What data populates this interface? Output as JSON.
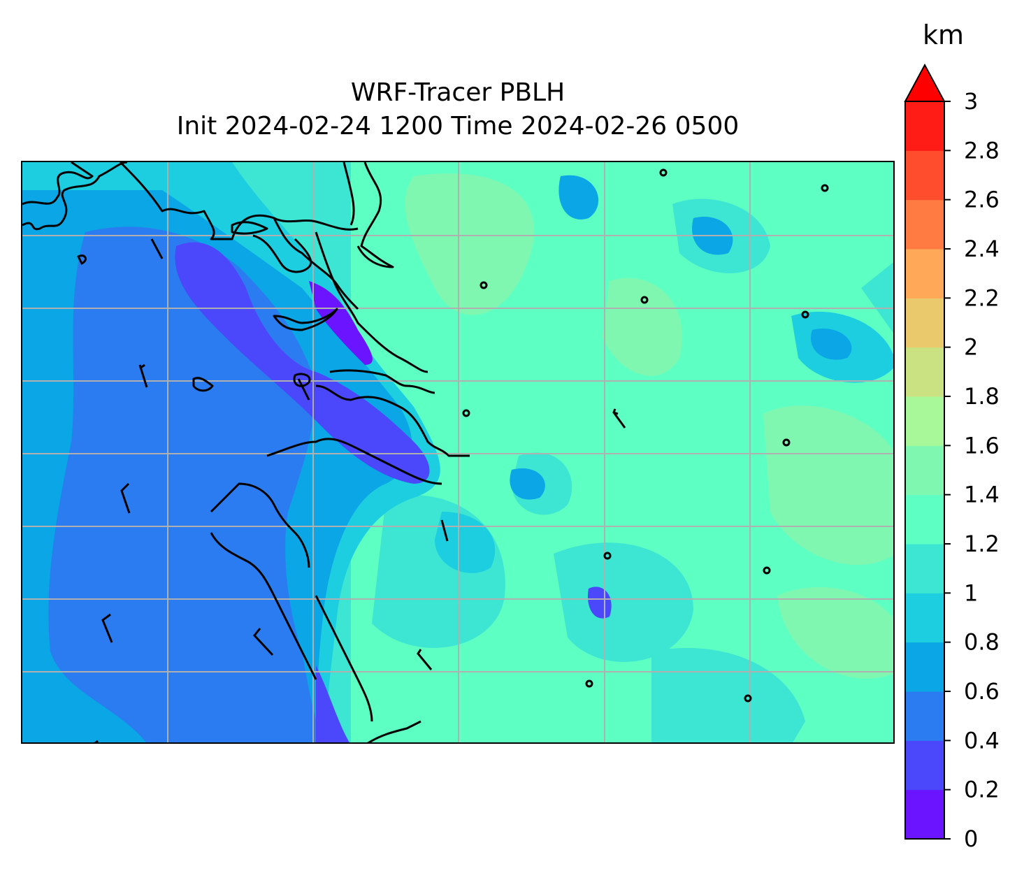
{
  "title": {
    "line1": "WRF-Tracer PBLH",
    "line2": "Init 2024-02-24 1200 Time 2024-02-26 0500"
  },
  "colorbar": {
    "unit": "km",
    "extend": "max",
    "levels": [
      0,
      0.2,
      0.4,
      0.6,
      0.8,
      1,
      1.2,
      1.4,
      1.6,
      1.8,
      2,
      2.2,
      2.4,
      2.6,
      2.8,
      3
    ],
    "tick_labels": [
      "0",
      "0.2",
      "0.4",
      "0.6",
      "0.8",
      "1",
      "1.2",
      "1.4",
      "1.6",
      "1.8",
      "2",
      "2.2",
      "2.4",
      "2.6",
      "2.8",
      "3"
    ],
    "colors": [
      "#6a14ff",
      "#4b47fb",
      "#2b7cf0",
      "#0aa6e6",
      "#1ccedf",
      "#3ce6d2",
      "#5effc3",
      "#7ff7b0",
      "#a8f798",
      "#cbe282",
      "#e9c96c",
      "#ffa858",
      "#ff7b42",
      "#ff4d2d",
      "#ff1c16"
    ],
    "over_color": "#ff0000"
  },
  "map": {
    "field": "PBLH",
    "gridlines": true,
    "gridline_color": "#b0b0b0",
    "coastline_color": "#000000",
    "wind_symbols": "calm circles and barbs"
  }
}
